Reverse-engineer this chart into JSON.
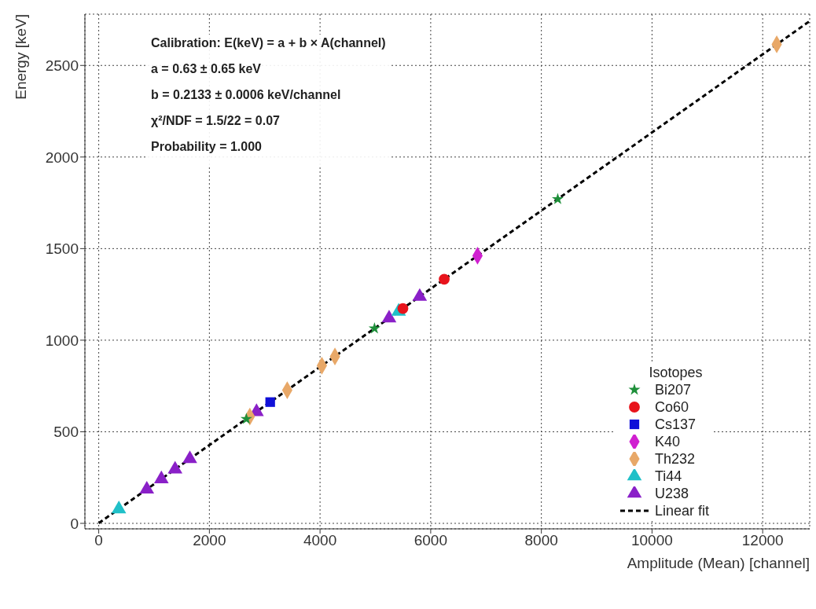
{
  "chart_data": {
    "type": "scatter",
    "xlabel": "Amplitude (Mean) [channel]",
    "ylabel": "Energy [keV]",
    "legend_title": "Isotopes",
    "legend": "bottom right",
    "grid": true,
    "xlim": [
      -250,
      12850
    ],
    "ylim": [
      -30,
      2780
    ],
    "xticks": [
      0,
      2000,
      4000,
      6000,
      8000,
      10000,
      12000
    ],
    "yticks": [
      0,
      500,
      1000,
      1500,
      2000,
      2500
    ],
    "annotations": [
      "Calibration: E(keV) = a + b × A(channel)",
      "a = 0.63 ± 0.65 keV",
      "b = 0.2133 ± 0.0006 keV/channel",
      "χ²/NDF = 1.5/22 = 0.07",
      "Probability = 1.000"
    ],
    "series": [
      {
        "name": "Bi207",
        "color": "#1e8f3a",
        "marker": "star",
        "x": [
          2668,
          4984,
          8296
        ],
        "values": [
          570,
          1064,
          1770
        ]
      },
      {
        "name": "Co60",
        "color": "#e8141c",
        "marker": "circle",
        "x": [
          5497,
          6244
        ],
        "values": [
          1173,
          1333
        ]
      },
      {
        "name": "Cs137",
        "color": "#1010d8",
        "marker": "square",
        "x": [
          3099
        ],
        "values": [
          662
        ]
      },
      {
        "name": "K40",
        "color": "#d020d0",
        "marker": "diamond",
        "x": [
          6846
        ],
        "values": [
          1461
        ]
      },
      {
        "name": "Th232",
        "color": "#e8a868",
        "marker": "diamond",
        "x": [
          2731,
          3407,
          4033,
          4269,
          12254
        ],
        "values": [
          583,
          727,
          861,
          911,
          2615
        ]
      },
      {
        "name": "Ti44",
        "color": "#20c0c8",
        "marker": "triangle",
        "x": [
          364,
          5421
        ],
        "values": [
          78,
          1157
        ]
      },
      {
        "name": "U238",
        "color": "#8a20c8",
        "marker": "triangle",
        "x": [
          869,
          1132,
          1380,
          1647,
          2852,
          5248,
          5801
        ],
        "values": [
          186,
          242,
          295,
          352,
          609,
          1120,
          1238
        ]
      },
      {
        "name": "Linear fit",
        "type": "line",
        "color": "#000000",
        "line_style": "dashed",
        "marker": "none",
        "x": [
          0,
          12850
        ],
        "values": [
          1,
          2742
        ]
      }
    ]
  }
}
